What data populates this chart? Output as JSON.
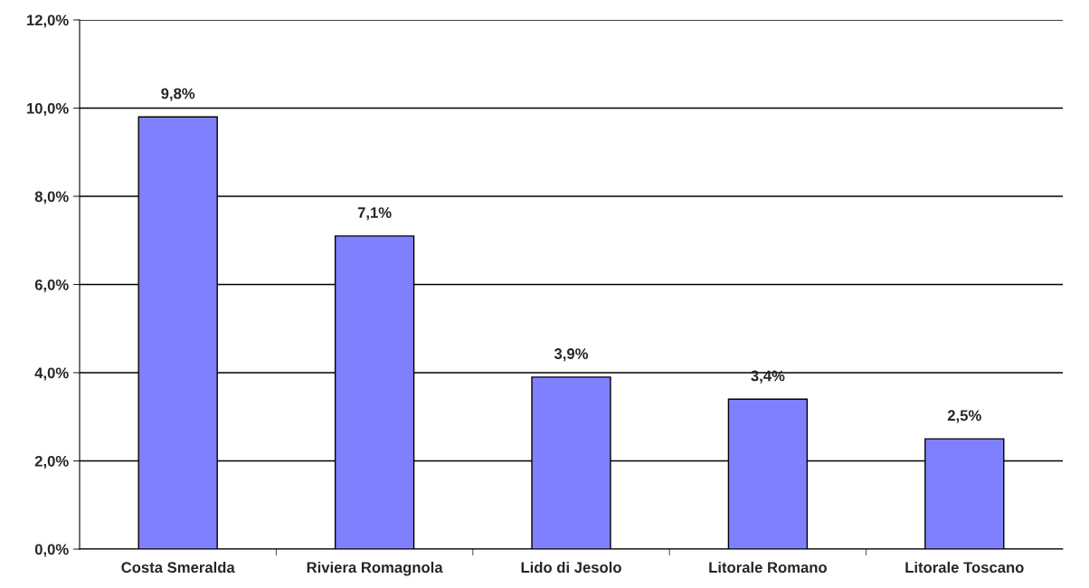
{
  "chart_data": {
    "type": "bar",
    "categories": [
      "Costa Smeralda",
      "Riviera Romagnola",
      "Lido di Jesolo",
      "Litorale Romano",
      "Litorale Toscano"
    ],
    "values": [
      9.8,
      7.1,
      3.9,
      3.4,
      2.5
    ],
    "value_labels": [
      "9,8%",
      "7,1%",
      "3,9%",
      "3,4%",
      "2,5%"
    ],
    "color": "#8080ff",
    "ylim": [
      0,
      12
    ],
    "yticks": [
      {
        "value": 0,
        "label": "0,0%"
      },
      {
        "value": 2,
        "label": "2,0%"
      },
      {
        "value": 4,
        "label": "4,0%"
      },
      {
        "value": 6,
        "label": "6,0%"
      },
      {
        "value": 8,
        "label": "8,0%"
      },
      {
        "value": 10,
        "label": "10,0%"
      },
      {
        "value": 12,
        "label": "12,0%"
      }
    ],
    "grid": "y",
    "legend": false
  }
}
